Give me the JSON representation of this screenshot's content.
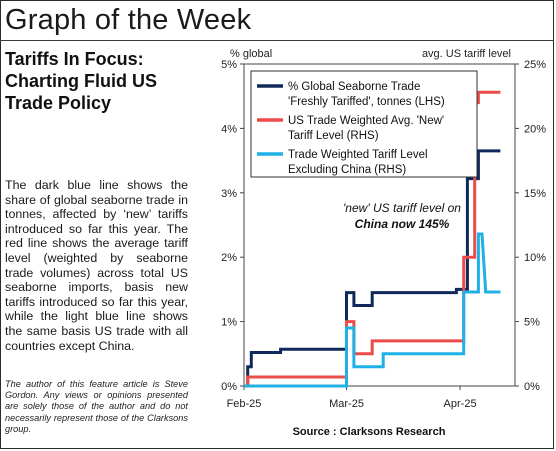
{
  "page": {
    "title": "Graph of the Week",
    "subtitle": "Tariffs In Focus: Charting Fluid US Trade Policy",
    "body": "The dark blue line shows the share of global seaborne trade in tonnes, affected by ‘new’ tariffs introduced so far this year. The red line shows the average tariff level (weighted by seaborne trade volumes) across total US seaborne imports, basis new tariffs introduced so far this year, while the light blue line shows the same basis US trade with all countries except China.",
    "disclaimer": "The author of this feature article is Steve Gordon. Any views or opinions presented are solely those of the author and do not necessarily represent those of the Clarksons group."
  },
  "chart_data": {
    "type": "line",
    "left_axis_label": "% global",
    "right_axis_label": "avg. US tariff level",
    "y_left": {
      "min": 0,
      "max": 5,
      "ticks": [
        "0%",
        "1%",
        "2%",
        "3%",
        "4%",
        "5%"
      ]
    },
    "y_right": {
      "min": 0,
      "max": 25,
      "ticks": [
        "0%",
        "5%",
        "10%",
        "15%",
        "20%",
        "25%"
      ]
    },
    "x_range": [
      0,
      74
    ],
    "x_ticks": [
      {
        "label": "Feb-25",
        "day": 0
      },
      {
        "label": "Mar-25",
        "day": 28
      },
      {
        "label": "Apr-25",
        "day": 59
      }
    ],
    "annotation": [
      "'new' US tariff level on",
      "China now 145%"
    ],
    "source": "Source : Clarksons Research",
    "series": [
      {
        "name": "% Global Seaborne Trade 'Freshly Tariffed', tonnes (LHS)",
        "legend_lines": [
          "% Global Seaborne Trade",
          "'Freshly Tariffed', tonnes (LHS)"
        ],
        "axis": "left",
        "color": "#0f2a5a",
        "points": [
          [
            0,
            0
          ],
          [
            1,
            0
          ],
          [
            1,
            0.3
          ],
          [
            2,
            0.3
          ],
          [
            2,
            0.52
          ],
          [
            10,
            0.52
          ],
          [
            10,
            0.57
          ],
          [
            28,
            0.57
          ],
          [
            28,
            1.45
          ],
          [
            30,
            1.45
          ],
          [
            30,
            1.25
          ],
          [
            35,
            1.25
          ],
          [
            35,
            1.45
          ],
          [
            58,
            1.45
          ],
          [
            58,
            1.5
          ],
          [
            61,
            1.5
          ],
          [
            61,
            3.22
          ],
          [
            64,
            3.22
          ],
          [
            64,
            3.65
          ],
          [
            66,
            3.65
          ],
          [
            66,
            3.65
          ],
          [
            70,
            3.65
          ]
        ]
      },
      {
        "name": "US Trade Weighted Avg. 'New' Tariff Level (RHS)",
        "legend_lines": [
          "US Trade Weighted Avg. 'New'",
          "Tariff Level (RHS)"
        ],
        "axis": "right",
        "color": "#ee4b4b",
        "points": [
          [
            0,
            0
          ],
          [
            1,
            0
          ],
          [
            1,
            0.7
          ],
          [
            28,
            0.7
          ],
          [
            28,
            5
          ],
          [
            30,
            5
          ],
          [
            30,
            2.5
          ],
          [
            35,
            2.5
          ],
          [
            35,
            3.5
          ],
          [
            58,
            3.5
          ],
          [
            58,
            3.5
          ],
          [
            60,
            3.5
          ],
          [
            60,
            10
          ],
          [
            63,
            10
          ],
          [
            63,
            22
          ],
          [
            64,
            22
          ],
          [
            64,
            22.8
          ],
          [
            66,
            22.8
          ],
          [
            70,
            22.8
          ]
        ]
      },
      {
        "name": "Trade Weighted Tariff Level Excluding China (RHS)",
        "legend_lines": [
          "Trade Weighted Tariff Level",
          "Excluding China (RHS)"
        ],
        "axis": "right",
        "color": "#1fb1e6",
        "points": [
          [
            0,
            0
          ],
          [
            28,
            0
          ],
          [
            28,
            4.5
          ],
          [
            30,
            4.5
          ],
          [
            30,
            1.5
          ],
          [
            35,
            1.5
          ],
          [
            35,
            1.5
          ],
          [
            38,
            1.5
          ],
          [
            38,
            2.5
          ],
          [
            58,
            2.5
          ],
          [
            58,
            2.5
          ],
          [
            60,
            2.5
          ],
          [
            60,
            7.3
          ],
          [
            63,
            7.3
          ],
          [
            64,
            7.3
          ],
          [
            64,
            11.8
          ],
          [
            65,
            11.8
          ],
          [
            66,
            7.3
          ],
          [
            70,
            7.3
          ]
        ]
      }
    ]
  }
}
